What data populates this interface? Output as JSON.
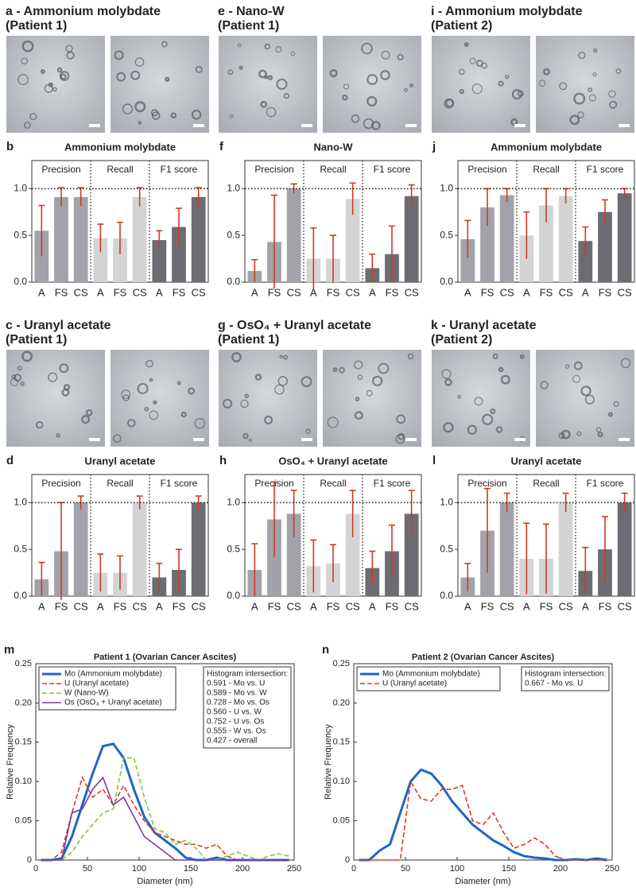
{
  "micrographs": [
    {
      "title": "a - Ammonium molybdate",
      "subtitle": "(Patient 1)"
    },
    {
      "title": "e - Nano-W",
      "subtitle": "(Patient 1)"
    },
    {
      "title": "i - Ammonium molybdate",
      "subtitle": "(Patient 2)"
    },
    {
      "title": "c - Uranyl acetate",
      "subtitle": "(Patient 1)"
    },
    {
      "title": "g - OsO₄ + Uranyl acetate",
      "subtitle": "(Patient 1)"
    },
    {
      "title": "k - Uranyl acetate",
      "subtitle": "(Patient 2)"
    }
  ],
  "chart_data": [
    {
      "type": "bar",
      "label": "b",
      "title": "Ammonium molybdate",
      "ylim": [
        0,
        1.3
      ],
      "yticks": [
        {
          "value": 0,
          "label": "0.0"
        },
        0.5,
        {
          "value": 1,
          "label": "1.0"
        }
      ],
      "reference_line": 1,
      "groups": [
        {
          "name": "Precision",
          "color": "#a2a2aa",
          "categories": [
            "A",
            "FS",
            "CS"
          ],
          "values": [
            0.55,
            0.91,
            0.91
          ],
          "errors": [
            0.27,
            0.1,
            0.1
          ]
        },
        {
          "name": "Recall",
          "color": "#d4d4d6",
          "categories": [
            "A",
            "FS",
            "CS"
          ],
          "values": [
            0.47,
            0.47,
            0.91
          ],
          "errors": [
            0.15,
            0.17,
            0.1
          ]
        },
        {
          "name": "F1 score",
          "color": "#6c6c72",
          "categories": [
            "A",
            "FS",
            "CS"
          ],
          "values": [
            0.45,
            0.59,
            0.91
          ],
          "errors": [
            0.1,
            0.2,
            0.1
          ]
        }
      ]
    },
    {
      "type": "bar",
      "label": "f",
      "title": "Nano-W",
      "ylim": [
        0,
        1.3
      ],
      "yticks": [
        {
          "value": 0,
          "label": "0.0"
        },
        0.5,
        {
          "value": 1,
          "label": "1.0"
        }
      ],
      "reference_line": 1,
      "groups": [
        {
          "name": "Precision",
          "color": "#a2a2aa",
          "categories": [
            "A",
            "FS",
            "CS"
          ],
          "values": [
            0.12,
            0.43,
            1.0
          ],
          "errors": [
            0.12,
            0.5,
            0.05
          ]
        },
        {
          "name": "Recall",
          "color": "#d4d4d6",
          "categories": [
            "A",
            "FS",
            "CS"
          ],
          "values": [
            0.25,
            0.25,
            0.89
          ],
          "errors": [
            0.33,
            0.25,
            0.17
          ]
        },
        {
          "name": "F1 score",
          "color": "#6c6c72",
          "categories": [
            "A",
            "FS",
            "CS"
          ],
          "values": [
            0.15,
            0.3,
            0.92
          ],
          "errors": [
            0.15,
            0.3,
            0.12
          ]
        }
      ]
    },
    {
      "type": "bar",
      "label": "j",
      "title": "Ammonium molybdate",
      "ylim": [
        0,
        1.3
      ],
      "yticks": [
        {
          "value": 0,
          "label": "0.0"
        },
        0.5,
        {
          "value": 1,
          "label": "1.0"
        }
      ],
      "reference_line": 1,
      "groups": [
        {
          "name": "Precision",
          "color": "#a2a2aa",
          "categories": [
            "A",
            "FS",
            "CS"
          ],
          "values": [
            0.46,
            0.8,
            0.93
          ],
          "errors": [
            0.2,
            0.2,
            0.07
          ]
        },
        {
          "name": "Recall",
          "color": "#d4d4d6",
          "categories": [
            "A",
            "FS",
            "CS"
          ],
          "values": [
            0.5,
            0.82,
            0.92
          ],
          "errors": [
            0.25,
            0.18,
            0.08
          ]
        },
        {
          "name": "F1 score",
          "color": "#6c6c72",
          "categories": [
            "A",
            "FS",
            "CS"
          ],
          "values": [
            0.44,
            0.75,
            0.95
          ],
          "errors": [
            0.15,
            0.13,
            0.05
          ]
        }
      ]
    },
    {
      "type": "bar",
      "label": "d",
      "title": "Uranyl acetate",
      "ylim": [
        0,
        1.3
      ],
      "yticks": [
        {
          "value": 0,
          "label": "0.0"
        },
        0.5,
        {
          "value": 1,
          "label": "1.0"
        }
      ],
      "reference_line": 1,
      "groups": [
        {
          "name": "Precision",
          "color": "#a2a2aa",
          "categories": [
            "A",
            "FS",
            "CS"
          ],
          "values": [
            0.18,
            0.48,
            1.0
          ],
          "errors": [
            0.18,
            0.52,
            0.07
          ]
        },
        {
          "name": "Recall",
          "color": "#d4d4d6",
          "categories": [
            "A",
            "FS",
            "CS"
          ],
          "values": [
            0.25,
            0.25,
            1.0
          ],
          "errors": [
            0.2,
            0.18,
            0.07
          ]
        },
        {
          "name": "F1 score",
          "color": "#6c6c72",
          "categories": [
            "A",
            "FS",
            "CS"
          ],
          "values": [
            0.2,
            0.28,
            1.0
          ],
          "errors": [
            0.15,
            0.22,
            0.07
          ]
        }
      ]
    },
    {
      "type": "bar",
      "label": "h",
      "title": "OsO₄ + Uranyl acetate",
      "ylim": [
        0,
        1.3
      ],
      "yticks": [
        {
          "value": 0,
          "label": "0.0"
        },
        0.5,
        {
          "value": 1,
          "label": "1.0"
        }
      ],
      "reference_line": 1,
      "groups": [
        {
          "name": "Precision",
          "color": "#a2a2aa",
          "categories": [
            "A",
            "FS",
            "CS"
          ],
          "values": [
            0.28,
            0.82,
            0.88
          ],
          "errors": [
            0.28,
            0.4,
            0.25
          ]
        },
        {
          "name": "Recall",
          "color": "#d4d4d6",
          "categories": [
            "A",
            "FS",
            "CS"
          ],
          "values": [
            0.32,
            0.35,
            0.88
          ],
          "errors": [
            0.28,
            0.2,
            0.25
          ]
        },
        {
          "name": "F1 score",
          "color": "#6c6c72",
          "categories": [
            "A",
            "FS",
            "CS"
          ],
          "values": [
            0.3,
            0.48,
            0.88
          ],
          "errors": [
            0.18,
            0.28,
            0.25
          ]
        }
      ]
    },
    {
      "type": "bar",
      "label": "l",
      "title": "Uranyl acetate",
      "ylim": [
        0,
        1.3
      ],
      "yticks": [
        {
          "value": 0,
          "label": "0.0"
        },
        0.5,
        {
          "value": 1,
          "label": "1.0"
        }
      ],
      "reference_line": 1,
      "groups": [
        {
          "name": "Precision",
          "color": "#a2a2aa",
          "categories": [
            "A",
            "FS",
            "CS"
          ],
          "values": [
            0.2,
            0.7,
            1.0
          ],
          "errors": [
            0.15,
            0.45,
            0.1
          ]
        },
        {
          "name": "Recall",
          "color": "#d4d4d6",
          "categories": [
            "A",
            "FS",
            "CS"
          ],
          "values": [
            0.4,
            0.4,
            1.0
          ],
          "errors": [
            0.38,
            0.37,
            0.1
          ]
        },
        {
          "name": "F1 score",
          "color": "#6c6c72",
          "categories": [
            "A",
            "FS",
            "CS"
          ],
          "values": [
            0.27,
            0.5,
            1.0
          ],
          "errors": [
            0.25,
            0.35,
            0.1
          ]
        }
      ]
    },
    {
      "type": "line",
      "label": "m",
      "title": "Patient 1 (Ovarian Cancer Ascites)",
      "x_label": "Diameter  (nm)",
      "y_label": "Relative Frequency",
      "xlim": [
        0,
        250
      ],
      "xticks": [
        0,
        50,
        100,
        150,
        200,
        250
      ],
      "ylim": [
        0,
        0.25
      ],
      "yticks": [
        0,
        0.05,
        {
          "value": 0.1,
          "label": "0.10"
        },
        0.15,
        {
          "value": 0.2,
          "label": "0.20"
        },
        0.25
      ],
      "x": [
        5,
        15,
        25,
        35,
        45,
        55,
        65,
        75,
        85,
        95,
        105,
        115,
        125,
        135,
        145,
        155,
        165,
        175,
        185,
        195,
        205,
        215,
        225,
        235,
        245
      ],
      "series": [
        {
          "name": "Mo (Ammonium molybdate)",
          "color": "#1f66c0",
          "dash": "solid",
          "values": [
            0,
            0,
            0.002,
            0.03,
            0.07,
            0.11,
            0.145,
            0.148,
            0.13,
            0.09,
            0.055,
            0.035,
            0.025,
            0.015,
            0.003,
            0,
            0,
            0.003,
            0,
            0,
            0,
            0,
            0,
            0,
            0
          ]
        },
        {
          "name": "U (Uranyl acetate)",
          "color": "#e03828",
          "dash": "dashed",
          "values": [
            0,
            0,
            0.01,
            0.06,
            0.105,
            0.08,
            0.09,
            0.07,
            0.095,
            0.07,
            0.05,
            0.035,
            0.03,
            0.025,
            0.02,
            0.02,
            0.015,
            0.02,
            0.005,
            0,
            0,
            0,
            0,
            0,
            0
          ]
        },
        {
          "name": "W (Nano-W)",
          "color": "#86c440",
          "dash": "dashed",
          "values": [
            0,
            0,
            0,
            0.01,
            0.03,
            0.045,
            0.06,
            0.065,
            0.13,
            0.13,
            0.08,
            0.04,
            0.035,
            0.02,
            0.025,
            0.015,
            0,
            0,
            0.005,
            0.01,
            0.005,
            0,
            0.005,
            0.008,
            0.005
          ]
        },
        {
          "name": "Os (OsO₄ + Uranyl acetate)",
          "color": "#7b3aa0",
          "dash": "solid",
          "values": [
            0,
            0,
            0,
            0.06,
            0.065,
            0.09,
            0.105,
            0.07,
            0.08,
            0.055,
            0.03,
            0.02,
            0.01,
            0,
            0,
            0,
            0,
            0,
            0,
            0,
            0,
            0,
            0,
            0,
            0
          ]
        }
      ],
      "annotation": [
        "Histogram intersection:",
        "0.591 - Mo vs. U",
        "0.589 - Mo vs. W",
        "0.728 - Mo vs. Os",
        "0.560 - U vs. W",
        "0.752 - U vs. Os",
        "0.555 - W vs. Os",
        "0.427 - overall"
      ]
    },
    {
      "type": "line",
      "label": "n",
      "title": "Patient 2 (Ovarian Cancer Ascites)",
      "x_label": "Diameter  (nm)",
      "y_label": "Relative Frequency",
      "xlim": [
        0,
        250
      ],
      "xticks": [
        0,
        50,
        100,
        150,
        200,
        250
      ],
      "ylim": [
        0,
        0.25
      ],
      "yticks": [
        0,
        0.05,
        {
          "value": 0.1,
          "label": "0.10"
        },
        0.15,
        {
          "value": 0.2,
          "label": "0.20"
        },
        0.25
      ],
      "x": [
        5,
        15,
        25,
        35,
        45,
        55,
        65,
        75,
        85,
        95,
        105,
        115,
        125,
        135,
        145,
        155,
        165,
        175,
        185,
        195,
        205,
        215,
        225,
        235,
        245
      ],
      "series": [
        {
          "name": "Mo (Ammonium molybdate)",
          "color": "#1f66c0",
          "dash": "solid",
          "values": [
            0,
            0,
            0.012,
            0.02,
            0.06,
            0.1,
            0.115,
            0.11,
            0.095,
            0.075,
            0.06,
            0.045,
            0.035,
            0.025,
            0.018,
            0.01,
            0.005,
            0.003,
            0.002,
            0,
            0,
            0.001,
            0,
            0.002,
            0
          ]
        },
        {
          "name": "U (Uranyl acetate)",
          "color": "#e03828",
          "dash": "dashed",
          "values": [
            0,
            0,
            0,
            0,
            0,
            0.1,
            0.078,
            0.075,
            0.09,
            0.09,
            0.095,
            0.05,
            0.045,
            0.06,
            0.035,
            0.015,
            0.02,
            0.028,
            0.02,
            0.005,
            0,
            0,
            0,
            0,
            0
          ]
        }
      ],
      "annotation": [
        "Histogram intersection:",
        "0.667 - Mo vs. U"
      ]
    }
  ]
}
